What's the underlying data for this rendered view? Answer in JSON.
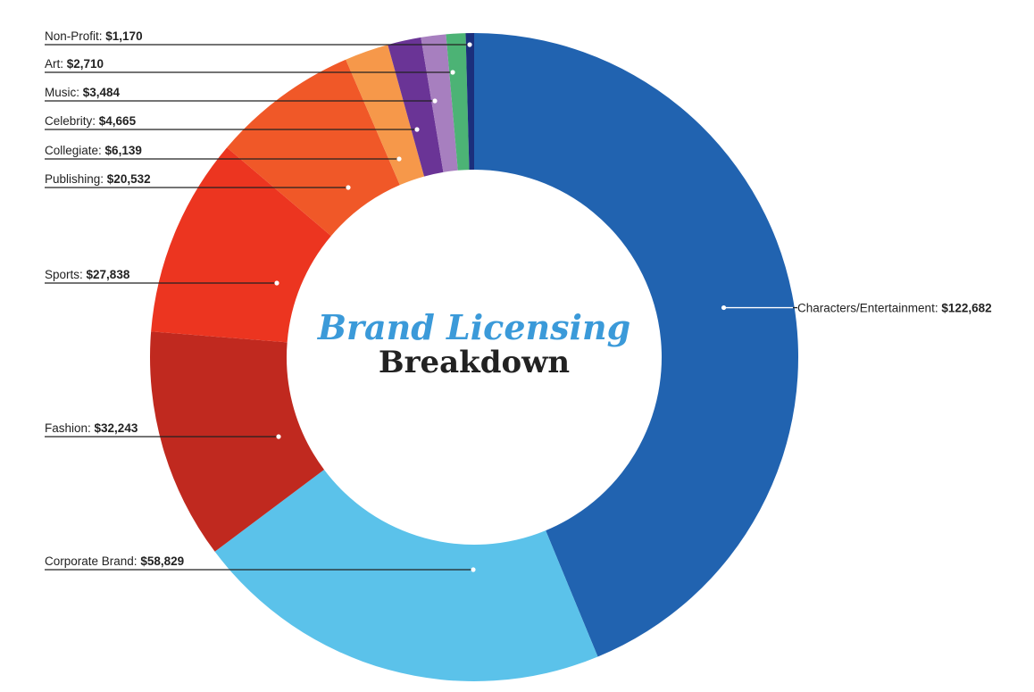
{
  "chart_data": {
    "type": "pie",
    "variant": "donut",
    "title": "Brand Licensing",
    "subtitle": "Breakdown",
    "currency_prefix": "$",
    "categories": [
      "Characters/Entertainment",
      "Corporate Brand",
      "Fashion",
      "Sports",
      "Publishing",
      "Collegiate",
      "Celebrity",
      "Music",
      "Art",
      "Non-Profit"
    ],
    "values": [
      122682,
      58829,
      32243,
      27838,
      20532,
      6139,
      4665,
      3484,
      2710,
      1170
    ],
    "display_values": [
      "$122,682",
      "$58,829",
      "$32,243",
      "$27,838",
      "$20,532",
      "$6,139",
      "$4,665",
      "$3,484",
      "$2,710",
      "$1,170"
    ],
    "colors": [
      "#2163b0",
      "#5bc2ea",
      "#c0291f",
      "#ec3520",
      "#f05828",
      "#f6984a",
      "#6a3496",
      "#a77fbf",
      "#4cb375",
      "#1b2f7c"
    ],
    "title_colors": {
      "title": "#3b9ad9",
      "subtitle": "#222222"
    },
    "label_placement": {
      "Characters/Entertainment": "right",
      "Corporate Brand": "left",
      "Fashion": "left",
      "Sports": "left",
      "Publishing": "left",
      "Collegiate": "left",
      "Celebrity": "left",
      "Music": "left",
      "Art": "left",
      "Non-Profit": "left"
    }
  }
}
